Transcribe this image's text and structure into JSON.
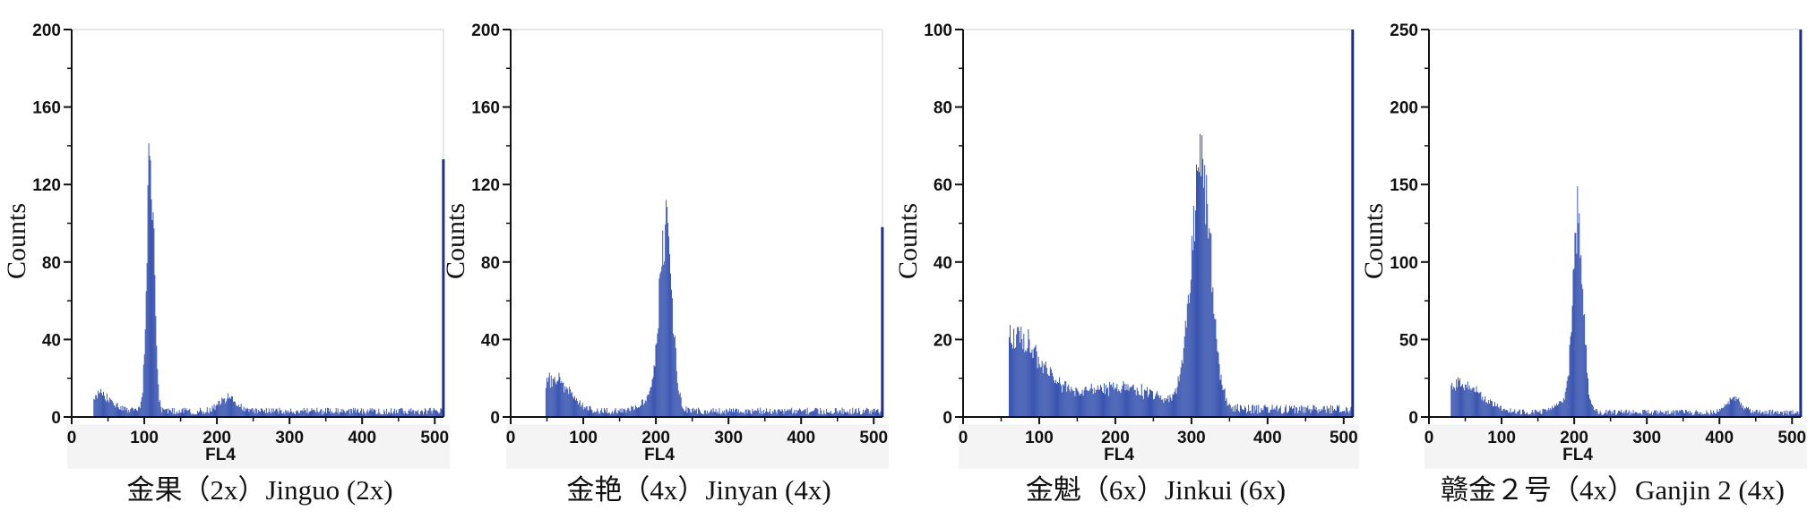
{
  "chart_data": [
    {
      "type": "histogram",
      "xlabel": "FL4",
      "ylabel": "Counts",
      "xlim": [
        0,
        512
      ],
      "ylim": [
        0,
        200
      ],
      "xticks": [
        0,
        100,
        200,
        300,
        400,
        500
      ],
      "xtick_labels": [
        "0",
        "100",
        "200",
        "300",
        "400",
        "500"
      ],
      "yticks": [
        0,
        40,
        80,
        120,
        160,
        200
      ],
      "ytick_labels": [
        "0",
        "40",
        "80",
        "120",
        "160",
        "200"
      ],
      "caption": "金果（2x）Jinguo (2x)",
      "bar_color": "#3a55b0",
      "histogram": {
        "bin_start": 30,
        "bin_end": 510,
        "baseline": 3,
        "peaks": [
          {
            "center": 108,
            "height": 145,
            "width": 5
          },
          {
            "center": 40,
            "height": 9,
            "width": 15
          },
          {
            "center": 215,
            "height": 7,
            "width": 12
          }
        ],
        "end_spike": {
          "x": 510,
          "height": 133
        }
      }
    },
    {
      "type": "histogram",
      "xlabel": "FL4",
      "ylabel": "Counts",
      "xlim": [
        0,
        512
      ],
      "ylim": [
        0,
        200
      ],
      "xticks": [
        0,
        100,
        200,
        300,
        400,
        500
      ],
      "xtick_labels": [
        "0",
        "100",
        "200",
        "300",
        "400",
        "500"
      ],
      "yticks": [
        0,
        40,
        80,
        120,
        160,
        200
      ],
      "ytick_labels": [
        "0",
        "40",
        "80",
        "120",
        "160",
        "200"
      ],
      "caption": "金艳（4x）Jinyan (4x)",
      "bar_color": "#3a55b0",
      "histogram": {
        "bin_start": 48,
        "bin_end": 510,
        "baseline": 3,
        "peaks": [
          {
            "center": 213,
            "height": 98,
            "width": 9
          },
          {
            "center": 60,
            "height": 18,
            "width": 20
          },
          {
            "center": 190,
            "height": 6,
            "width": 15
          }
        ],
        "end_spike": {
          "x": 510,
          "height": 98
        }
      }
    },
    {
      "type": "histogram",
      "xlabel": "FL4",
      "ylabel": "Counts",
      "xlim": [
        0,
        512
      ],
      "ylim": [
        0,
        100
      ],
      "xticks": [
        0,
        100,
        200,
        300,
        400,
        500
      ],
      "xtick_labels": [
        "0",
        "100",
        "200",
        "300",
        "400",
        "500"
      ],
      "yticks": [
        0,
        20,
        40,
        60,
        80,
        100
      ],
      "ytick_labels": [
        "0",
        "20",
        "40",
        "60",
        "80",
        "100"
      ],
      "caption": "金魁（6x）Jinkui (6x)",
      "bar_color": "#3a55b0",
      "histogram": {
        "bin_start": 60,
        "bin_end": 510,
        "baseline": 2,
        "peaks": [
          {
            "center": 312,
            "height": 68,
            "width": 13
          },
          {
            "center": 65,
            "height": 20,
            "width": 35
          },
          {
            "center": 200,
            "height": 6,
            "width": 60
          }
        ],
        "end_spike": {
          "x": 510,
          "height": 100
        }
      }
    },
    {
      "type": "histogram",
      "xlabel": "FL4",
      "ylabel": "Counts",
      "xlim": [
        0,
        512
      ],
      "ylim": [
        0,
        250
      ],
      "xticks": [
        0,
        100,
        200,
        300,
        400,
        500
      ],
      "xtick_labels": [
        "0",
        "100",
        "200",
        "300",
        "400",
        "500"
      ],
      "yticks": [
        0,
        50,
        100,
        150,
        200,
        250
      ],
      "ytick_labels": [
        "0",
        "50",
        "100",
        "150",
        "200",
        "250"
      ],
      "caption": "赣金２号（4x）Ganjin 2 (4x)",
      "bar_color": "#3a55b0",
      "histogram": {
        "bin_start": 30,
        "bin_end": 510,
        "baseline": 3,
        "peaks": [
          {
            "center": 205,
            "height": 130,
            "width": 7
          },
          {
            "center": 40,
            "height": 20,
            "width": 30
          },
          {
            "center": 420,
            "height": 10,
            "width": 10
          },
          {
            "center": 190,
            "height": 8,
            "width": 15
          }
        ],
        "end_spike": {
          "x": 510,
          "height": 250
        }
      }
    }
  ]
}
